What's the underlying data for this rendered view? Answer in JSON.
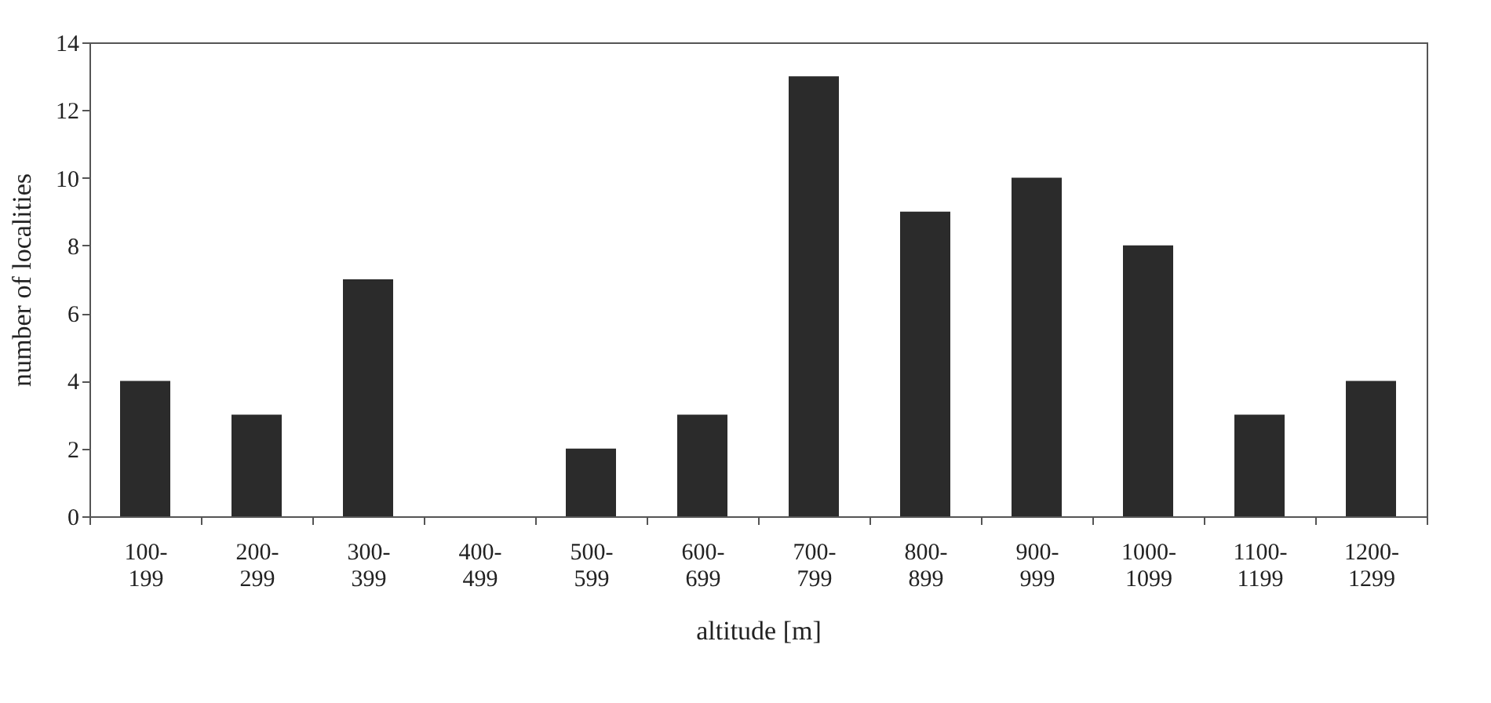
{
  "chart_data": {
    "type": "bar",
    "xlabel": "altitude [m]",
    "ylabel": "number of localities",
    "categories": [
      "100-199",
      "200-299",
      "300-399",
      "400-499",
      "500-599",
      "600-699",
      "700-799",
      "800-899",
      "900-999",
      "1000-1099",
      "1100-1199",
      "1200-1299"
    ],
    "values": [
      4,
      3,
      7,
      0,
      2,
      3,
      13,
      9,
      10,
      8,
      3,
      4
    ],
    "color": "#2b2b2b",
    "ylim": [
      0,
      14
    ],
    "yticks": [
      0,
      2,
      4,
      6,
      8,
      10,
      12,
      14
    ],
    "grid": false
  }
}
